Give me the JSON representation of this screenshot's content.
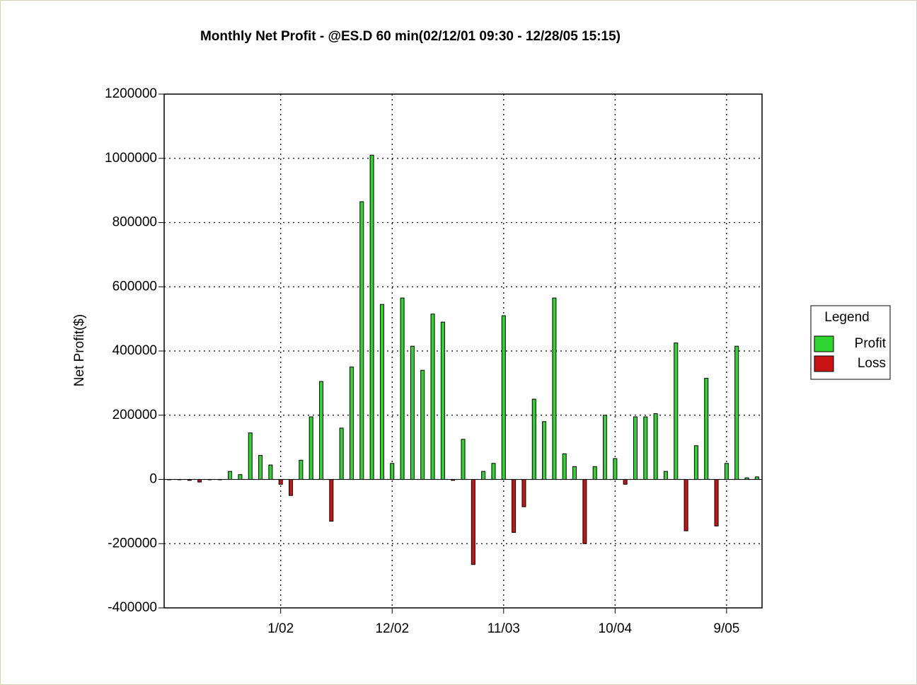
{
  "chart_data": {
    "type": "bar",
    "title": "Monthly Net Profit - @ES.D 60 min(02/12/01 09:30 - 12/28/05 15:15)",
    "y_label": "Net Profit($)",
    "categories": [
      null,
      null,
      null,
      null,
      null,
      null,
      null,
      null,
      null,
      null,
      null,
      "1/02",
      null,
      null,
      null,
      null,
      null,
      null,
      null,
      null,
      null,
      null,
      "12/02",
      null,
      null,
      null,
      null,
      null,
      null,
      null,
      null,
      null,
      null,
      "11/03",
      null,
      null,
      null,
      null,
      null,
      null,
      null,
      null,
      null,
      null,
      "10/04",
      null,
      null,
      null,
      null,
      null,
      null,
      null,
      null,
      null,
      null,
      "9/05",
      null,
      null,
      null
    ],
    "values": [
      0,
      0,
      -3000,
      -8000,
      0,
      0,
      25000,
      15000,
      145000,
      75000,
      45000,
      -15000,
      -50000,
      60000,
      195000,
      305000,
      -130000,
      160000,
      350000,
      865000,
      1010000,
      545000,
      50000,
      565000,
      415000,
      340000,
      515000,
      490000,
      -3000,
      125000,
      -265000,
      25000,
      50000,
      510000,
      -165000,
      -85000,
      250000,
      180000,
      565000,
      80000,
      40000,
      -200000,
      40000,
      200000,
      65000,
      -15000,
      195000,
      195000,
      205000,
      25000,
      425000,
      -160000,
      105000,
      315000,
      -145000,
      50000,
      415000,
      5000,
      8000
    ],
    "ylim": [
      -400000,
      1200000
    ],
    "yticks": [
      -400000,
      -200000,
      0,
      200000,
      400000,
      600000,
      800000,
      1000000,
      1200000
    ],
    "grid": true,
    "legend": {
      "title": "Legend",
      "position": "right",
      "entries": [
        {
          "name": "Profit",
          "color": "#2fd62f"
        },
        {
          "name": "Loss",
          "color": "#c81414"
        }
      ]
    }
  }
}
